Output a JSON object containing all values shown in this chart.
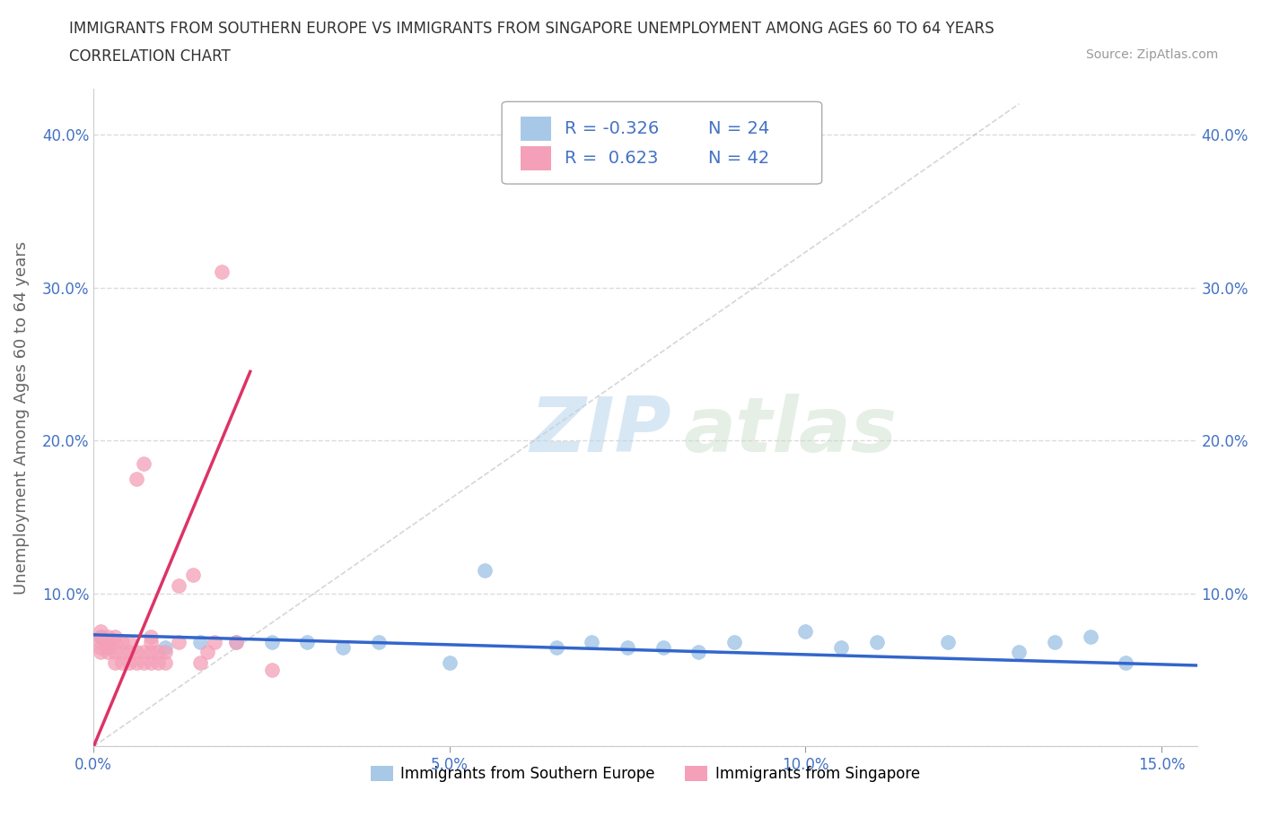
{
  "title_line1": "IMMIGRANTS FROM SOUTHERN EUROPE VS IMMIGRANTS FROM SINGAPORE UNEMPLOYMENT AMONG AGES 60 TO 64 YEARS",
  "title_line2": "CORRELATION CHART",
  "source_text": "Source: ZipAtlas.com",
  "ylabel": "Unemployment Among Ages 60 to 64 years",
  "watermark_zip": "ZIP",
  "watermark_atlas": "atlas",
  "legend_label1": "Immigrants from Southern Europe",
  "legend_label2": "Immigrants from Singapore",
  "R1": -0.326,
  "N1": 24,
  "R2": 0.623,
  "N2": 42,
  "color_blue": "#a8c8e8",
  "color_pink": "#f4a0b8",
  "color_blue_line": "#3366cc",
  "color_pink_line": "#dd3366",
  "color_blue_dark": "#4472c4",
  "xlim": [
    0.0,
    0.155
  ],
  "ylim": [
    0.0,
    0.43
  ],
  "xticks": [
    0.0,
    0.05,
    0.1,
    0.15
  ],
  "xtick_labels": [
    "0.0%",
    "5.0%",
    "10.0%",
    "15.0%"
  ],
  "yticks": [
    0.0,
    0.1,
    0.2,
    0.3,
    0.4
  ],
  "ytick_labels": [
    "",
    "10.0%",
    "20.0%",
    "30.0%",
    "40.0%"
  ],
  "blue_scatter_x": [
    0.001,
    0.01,
    0.015,
    0.02,
    0.025,
    0.03,
    0.035,
    0.04,
    0.05,
    0.055,
    0.065,
    0.07,
    0.075,
    0.08,
    0.085,
    0.09,
    0.1,
    0.105,
    0.11,
    0.12,
    0.13,
    0.135,
    0.14,
    0.145
  ],
  "blue_scatter_y": [
    0.072,
    0.065,
    0.068,
    0.068,
    0.068,
    0.068,
    0.065,
    0.068,
    0.055,
    0.115,
    0.065,
    0.068,
    0.065,
    0.065,
    0.062,
    0.068,
    0.075,
    0.065,
    0.068,
    0.068,
    0.062,
    0.068,
    0.072,
    0.055
  ],
  "pink_scatter_x": [
    0.001,
    0.001,
    0.001,
    0.001,
    0.001,
    0.002,
    0.002,
    0.002,
    0.002,
    0.003,
    0.003,
    0.003,
    0.003,
    0.004,
    0.004,
    0.004,
    0.005,
    0.005,
    0.005,
    0.006,
    0.006,
    0.006,
    0.007,
    0.007,
    0.007,
    0.008,
    0.008,
    0.008,
    0.008,
    0.009,
    0.009,
    0.01,
    0.01,
    0.012,
    0.012,
    0.014,
    0.015,
    0.016,
    0.017,
    0.018,
    0.02,
    0.025
  ],
  "pink_scatter_y": [
    0.062,
    0.065,
    0.068,
    0.072,
    0.075,
    0.062,
    0.065,
    0.068,
    0.072,
    0.055,
    0.062,
    0.068,
    0.072,
    0.055,
    0.062,
    0.068,
    0.055,
    0.062,
    0.068,
    0.055,
    0.062,
    0.175,
    0.055,
    0.062,
    0.185,
    0.055,
    0.062,
    0.068,
    0.072,
    0.055,
    0.062,
    0.055,
    0.062,
    0.068,
    0.105,
    0.112,
    0.055,
    0.062,
    0.068,
    0.31,
    0.068,
    0.05
  ],
  "pink_line_x0": 0.0,
  "pink_line_y0": 0.0,
  "pink_line_x1": 0.022,
  "pink_line_y1": 0.245,
  "blue_line_x0": 0.0,
  "blue_line_y0": 0.073,
  "blue_line_x1": 0.155,
  "blue_line_y1": 0.053
}
